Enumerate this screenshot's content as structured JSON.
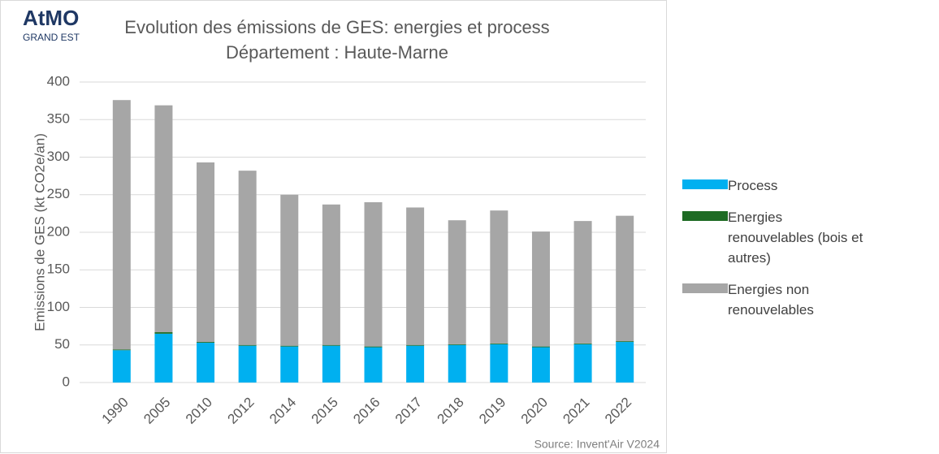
{
  "chart_data": {
    "type": "stacked_bar",
    "logo": "AtMO",
    "logo_sub": "GRAND EST",
    "title": "Evolution des émissions de GES: energies et process",
    "subtitle": "Département : Haute-Marne",
    "y_label": "Emissions de GES (kt CO2e/an)",
    "source": "Source: Invent'Air V2024",
    "categories": [
      "1990",
      "2005",
      "2010",
      "2012",
      "2014",
      "2015",
      "2016",
      "2017",
      "2018",
      "2019",
      "2020",
      "2021",
      "2022"
    ],
    "series": [
      {
        "name": "Process",
        "color": "#00b0f0",
        "values": [
          43,
          65,
          53,
          49,
          48,
          49,
          47,
          49,
          50,
          51,
          47,
          51,
          54
        ]
      },
      {
        "name": "Energies renouvelables (bois et autres)",
        "color": "#1e6b24",
        "values": [
          1,
          2,
          1,
          1,
          1,
          1,
          1,
          1,
          1,
          1,
          1,
          1,
          1
        ]
      },
      {
        "name": "Energies non renouvelables",
        "color": "#a6a6a6",
        "values": [
          332,
          302,
          239,
          232,
          201,
          187,
          192,
          183,
          165,
          177,
          153,
          163,
          167
        ]
      }
    ],
    "ylim": [
      0,
      400
    ],
    "yticks": [
      0,
      50,
      100,
      150,
      200,
      250,
      300,
      350,
      400
    ],
    "grid": true,
    "legend": "right"
  }
}
